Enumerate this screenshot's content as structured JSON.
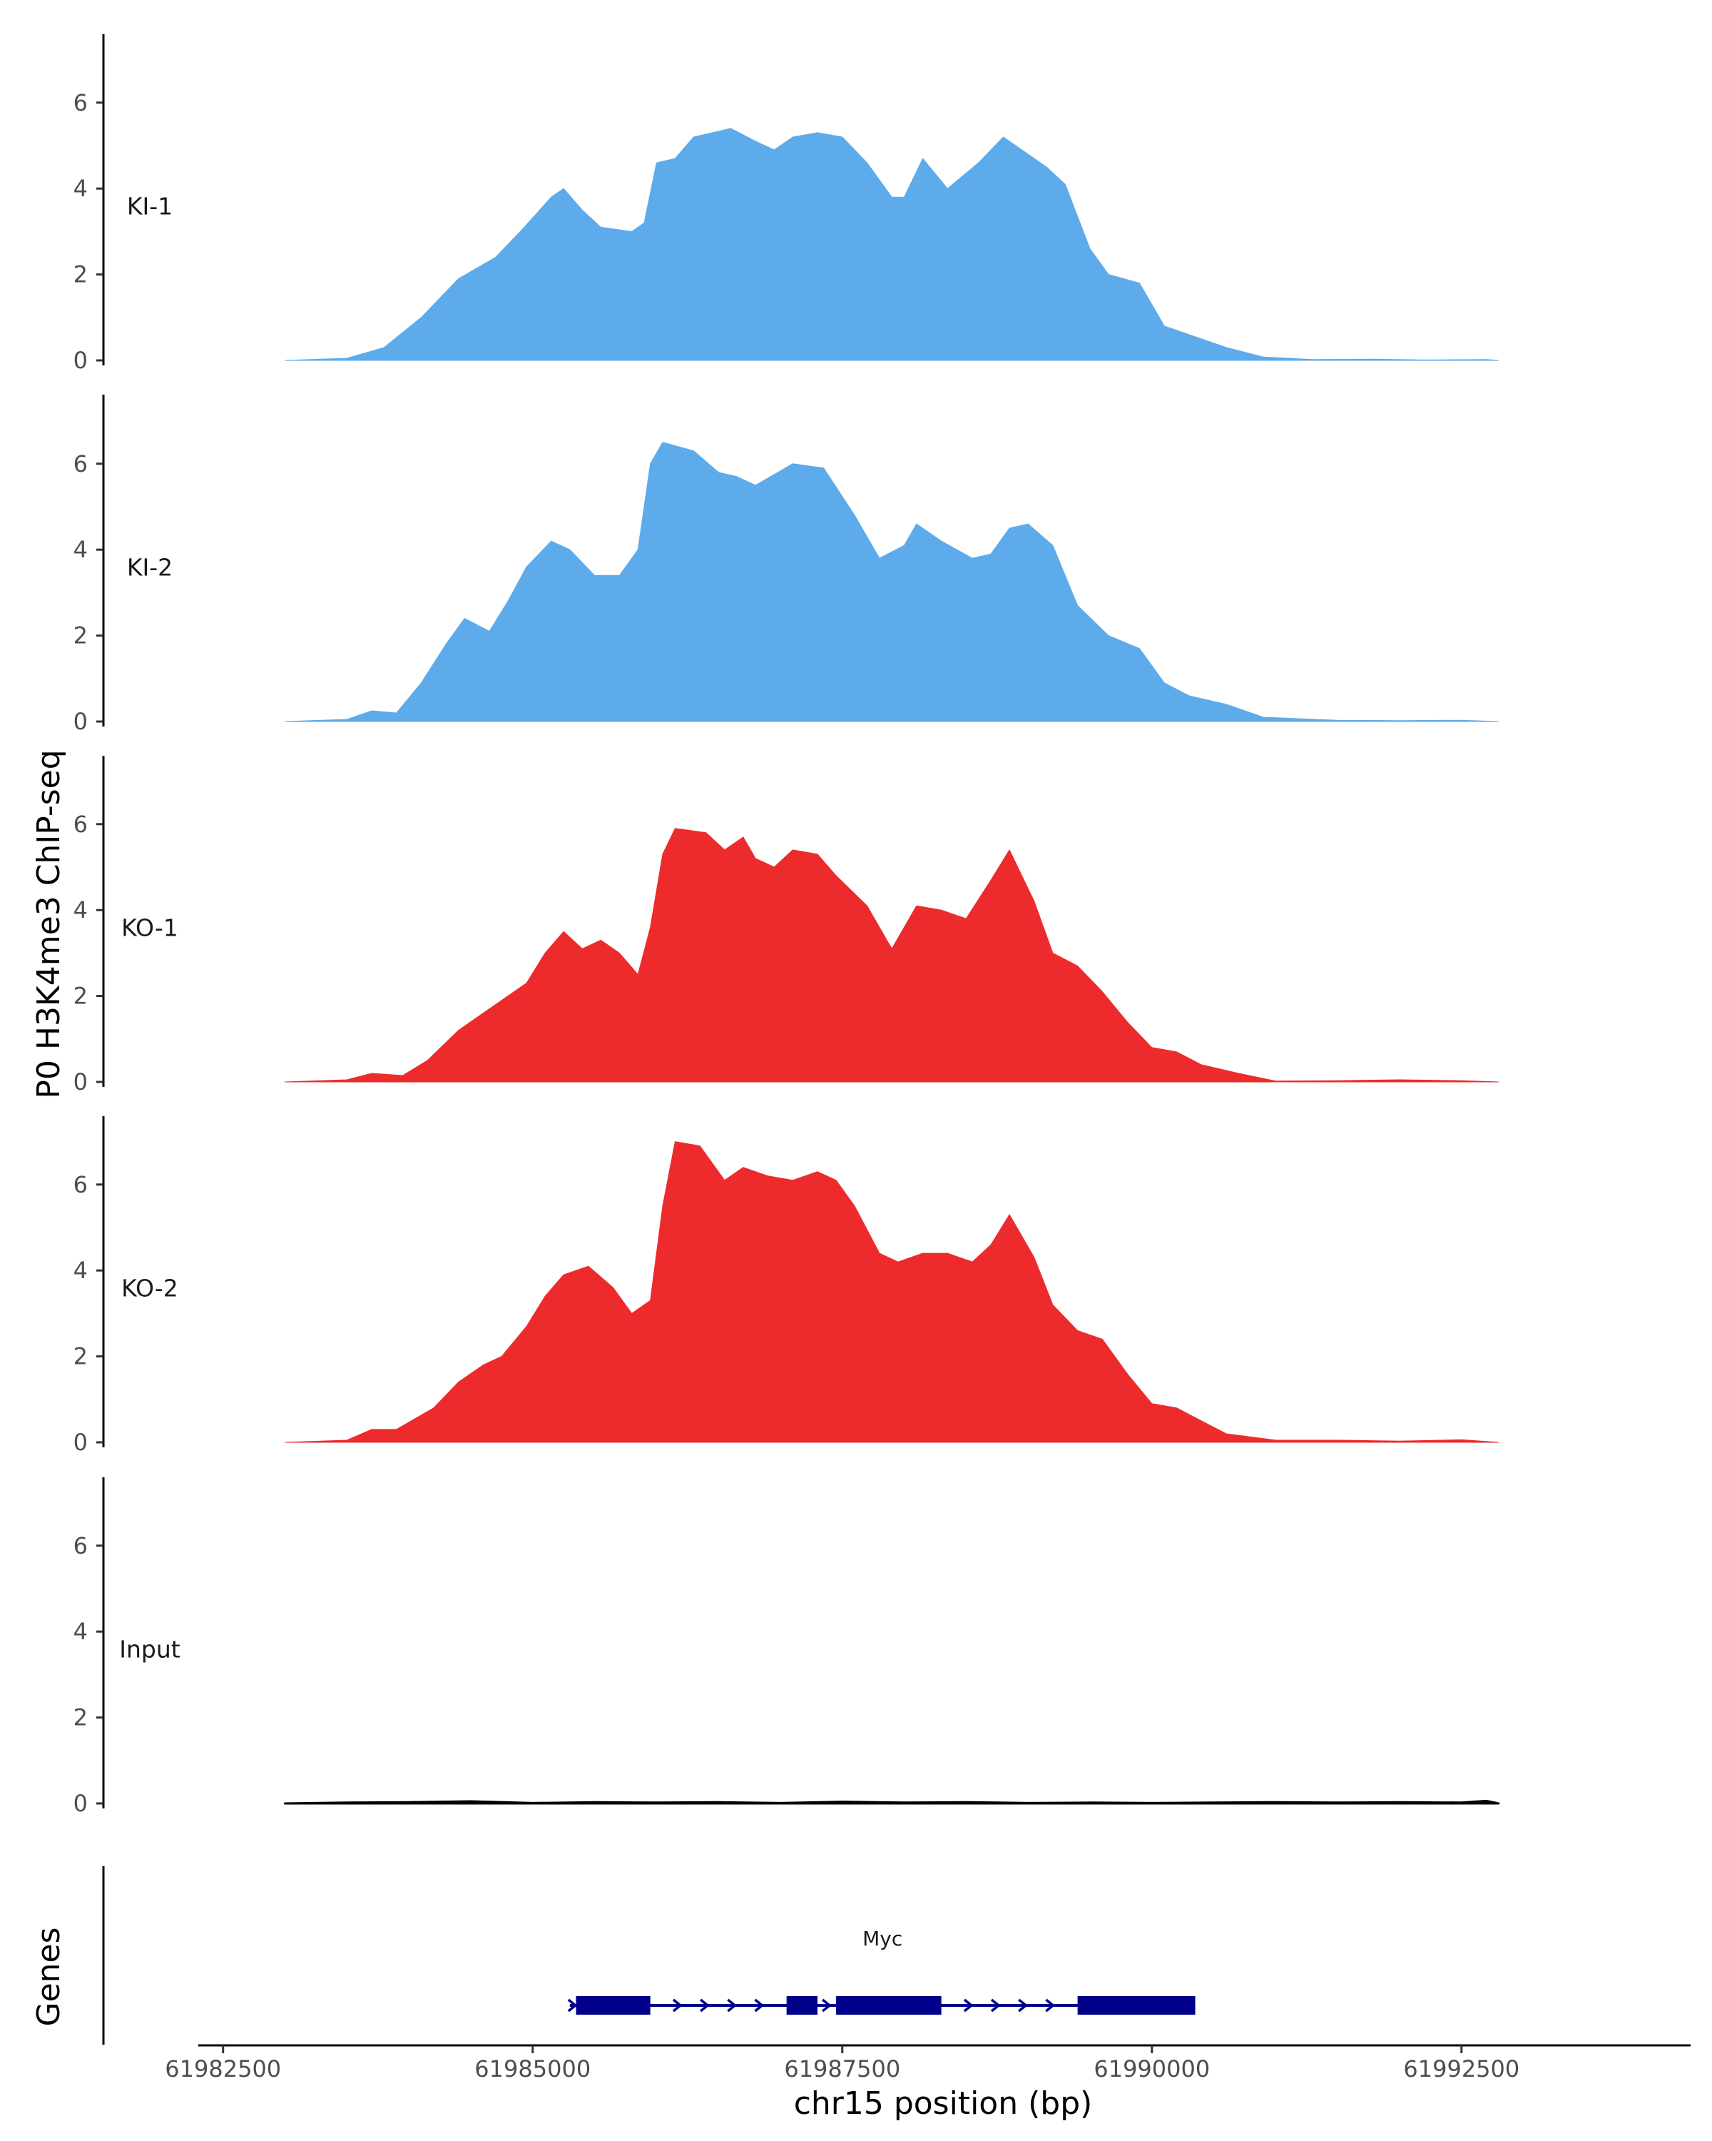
{
  "chart_data": {
    "type": "area",
    "ylabel": "P0 H3K4me3 ChIP-seq",
    "xlabel": "chr15 position (bp)",
    "xlim": [
      61982300,
      61994350
    ],
    "ylim": [
      0,
      7.5
    ],
    "x_ticks": [
      61982500,
      61985000,
      61987500,
      61990000,
      61992500
    ],
    "x_tick_labels": [
      "61982500",
      "61985000",
      "61987500",
      "61990000",
      "61992500"
    ],
    "y_ticks": [
      0,
      2,
      4,
      6
    ],
    "y_tick_labels": [
      "0",
      "2",
      "4",
      "6"
    ],
    "colors": {
      "KI": "#5DABEB",
      "KO": "#ED2B2C",
      "Input": "#000000",
      "gene": "#00008B"
    },
    "tracks": [
      {
        "name": "KI-1",
        "color": "#5DABEB",
        "points": [
          [
            61983000,
            0
          ],
          [
            61983500,
            0.05
          ],
          [
            61983800,
            0.3
          ],
          [
            61984100,
            1.0
          ],
          [
            61984400,
            1.9
          ],
          [
            61984700,
            2.4
          ],
          [
            61984900,
            3.0
          ],
          [
            61985150,
            3.8
          ],
          [
            61985250,
            4.0
          ],
          [
            61985400,
            3.5
          ],
          [
            61985550,
            3.1
          ],
          [
            61985800,
            3.0
          ],
          [
            61985900,
            3.2
          ],
          [
            61986000,
            4.6
          ],
          [
            61986150,
            4.7
          ],
          [
            61986300,
            5.2
          ],
          [
            61986600,
            5.4
          ],
          [
            61986800,
            5.1
          ],
          [
            61986950,
            4.9
          ],
          [
            61987100,
            5.2
          ],
          [
            61987300,
            5.3
          ],
          [
            61987500,
            5.2
          ],
          [
            61987700,
            4.6
          ],
          [
            61987900,
            3.8
          ],
          [
            61988000,
            3.8
          ],
          [
            61988150,
            4.7
          ],
          [
            61988350,
            4.0
          ],
          [
            61988600,
            4.6
          ],
          [
            61988800,
            5.2
          ],
          [
            61989000,
            4.8
          ],
          [
            61989150,
            4.5
          ],
          [
            61989300,
            4.1
          ],
          [
            61989500,
            2.6
          ],
          [
            61989650,
            2.0
          ],
          [
            61989900,
            1.8
          ],
          [
            61990100,
            0.8
          ],
          [
            61990300,
            0.6
          ],
          [
            61990600,
            0.3
          ],
          [
            61990900,
            0.08
          ],
          [
            61991300,
            0.02
          ],
          [
            61991800,
            0.03
          ],
          [
            61992200,
            0.01
          ],
          [
            61992700,
            0.02
          ],
          [
            61992800,
            0
          ]
        ]
      },
      {
        "name": "KI-2",
        "color": "#5DABEB",
        "points": [
          [
            61983000,
            0
          ],
          [
            61983500,
            0.05
          ],
          [
            61983700,
            0.25
          ],
          [
            61983900,
            0.2
          ],
          [
            61984100,
            0.9
          ],
          [
            61984300,
            1.8
          ],
          [
            61984450,
            2.4
          ],
          [
            61984650,
            2.1
          ],
          [
            61984800,
            2.8
          ],
          [
            61984950,
            3.6
          ],
          [
            61985150,
            4.2
          ],
          [
            61985300,
            4.0
          ],
          [
            61985500,
            3.4
          ],
          [
            61985700,
            3.4
          ],
          [
            61985850,
            4.0
          ],
          [
            61985950,
            6.0
          ],
          [
            61986050,
            6.5
          ],
          [
            61986300,
            6.3
          ],
          [
            61986500,
            5.8
          ],
          [
            61986650,
            5.7
          ],
          [
            61986800,
            5.5
          ],
          [
            61987100,
            6.0
          ],
          [
            61987350,
            5.9
          ],
          [
            61987600,
            4.8
          ],
          [
            61987800,
            3.8
          ],
          [
            61988000,
            4.1
          ],
          [
            61988100,
            4.6
          ],
          [
            61988300,
            4.2
          ],
          [
            61988550,
            3.8
          ],
          [
            61988700,
            3.9
          ],
          [
            61988850,
            4.5
          ],
          [
            61989000,
            4.6
          ],
          [
            61989200,
            4.1
          ],
          [
            61989400,
            2.7
          ],
          [
            61989650,
            2.0
          ],
          [
            61989900,
            1.7
          ],
          [
            61990100,
            0.9
          ],
          [
            61990300,
            0.6
          ],
          [
            61990600,
            0.4
          ],
          [
            61990900,
            0.1
          ],
          [
            61991500,
            0.03
          ],
          [
            61992000,
            0.02
          ],
          [
            61992500,
            0.03
          ],
          [
            61992800,
            0
          ]
        ]
      },
      {
        "name": "KO-1",
        "color": "#ED2B2C",
        "points": [
          [
            61983000,
            0
          ],
          [
            61983500,
            0.05
          ],
          [
            61983700,
            0.2
          ],
          [
            61983950,
            0.15
          ],
          [
            61984150,
            0.5
          ],
          [
            61984400,
            1.2
          ],
          [
            61984550,
            1.5
          ],
          [
            61984750,
            1.9
          ],
          [
            61984950,
            2.3
          ],
          [
            61985100,
            3.0
          ],
          [
            61985250,
            3.5
          ],
          [
            61985400,
            3.1
          ],
          [
            61985550,
            3.3
          ],
          [
            61985700,
            3.0
          ],
          [
            61985850,
            2.5
          ],
          [
            61985950,
            3.6
          ],
          [
            61986050,
            5.3
          ],
          [
            61986150,
            5.9
          ],
          [
            61986400,
            5.8
          ],
          [
            61986550,
            5.4
          ],
          [
            61986700,
            5.7
          ],
          [
            61986800,
            5.2
          ],
          [
            61986950,
            5.0
          ],
          [
            61987100,
            5.4
          ],
          [
            61987300,
            5.3
          ],
          [
            61987450,
            4.8
          ],
          [
            61987700,
            4.1
          ],
          [
            61987900,
            3.1
          ],
          [
            61988100,
            4.1
          ],
          [
            61988300,
            4.0
          ],
          [
            61988500,
            3.8
          ],
          [
            61988700,
            4.7
          ],
          [
            61988850,
            5.4
          ],
          [
            61989050,
            4.2
          ],
          [
            61989200,
            3.0
          ],
          [
            61989400,
            2.7
          ],
          [
            61989600,
            2.1
          ],
          [
            61989800,
            1.4
          ],
          [
            61990000,
            0.8
          ],
          [
            61990200,
            0.7
          ],
          [
            61990400,
            0.4
          ],
          [
            61990700,
            0.2
          ],
          [
            61991000,
            0.02
          ],
          [
            61991500,
            0.03
          ],
          [
            61992000,
            0.05
          ],
          [
            61992500,
            0.03
          ],
          [
            61992800,
            0
          ]
        ]
      },
      {
        "name": "KO-2",
        "color": "#ED2B2C",
        "points": [
          [
            61983000,
            0
          ],
          [
            61983500,
            0.05
          ],
          [
            61983700,
            0.3
          ],
          [
            61983900,
            0.3
          ],
          [
            61984200,
            0.8
          ],
          [
            61984400,
            1.4
          ],
          [
            61984600,
            1.8
          ],
          [
            61984750,
            2.0
          ],
          [
            61984950,
            2.7
          ],
          [
            61985100,
            3.4
          ],
          [
            61985250,
            3.9
          ],
          [
            61985450,
            4.1
          ],
          [
            61985650,
            3.6
          ],
          [
            61985800,
            3.0
          ],
          [
            61985950,
            3.3
          ],
          [
            61986050,
            5.5
          ],
          [
            61986150,
            7.0
          ],
          [
            61986350,
            6.9
          ],
          [
            61986550,
            6.1
          ],
          [
            61986700,
            6.4
          ],
          [
            61986900,
            6.2
          ],
          [
            61987100,
            6.1
          ],
          [
            61987300,
            6.3
          ],
          [
            61987450,
            6.1
          ],
          [
            61987600,
            5.5
          ],
          [
            61987800,
            4.4
          ],
          [
            61987950,
            4.2
          ],
          [
            61988150,
            4.4
          ],
          [
            61988350,
            4.4
          ],
          [
            61988550,
            4.2
          ],
          [
            61988700,
            4.6
          ],
          [
            61988850,
            5.3
          ],
          [
            61989050,
            4.3
          ],
          [
            61989200,
            3.2
          ],
          [
            61989400,
            2.6
          ],
          [
            61989600,
            2.4
          ],
          [
            61989800,
            1.6
          ],
          [
            61990000,
            0.9
          ],
          [
            61990200,
            0.8
          ],
          [
            61990400,
            0.5
          ],
          [
            61990600,
            0.2
          ],
          [
            61991000,
            0.05
          ],
          [
            61991500,
            0.05
          ],
          [
            61992000,
            0.03
          ],
          [
            61992500,
            0.06
          ],
          [
            61992800,
            0
          ]
        ]
      },
      {
        "name": "Input",
        "color": "#000000",
        "points": [
          [
            61983000,
            0
          ],
          [
            61983500,
            0.02
          ],
          [
            61984000,
            0.03
          ],
          [
            61984500,
            0.05
          ],
          [
            61985000,
            0.01
          ],
          [
            61985500,
            0.03
          ],
          [
            61986000,
            0.02
          ],
          [
            61986500,
            0.03
          ],
          [
            61987000,
            0.01
          ],
          [
            61987500,
            0.04
          ],
          [
            61988000,
            0.02
          ],
          [
            61988500,
            0.03
          ],
          [
            61989000,
            0.01
          ],
          [
            61989500,
            0.02
          ],
          [
            61990000,
            0.01
          ],
          [
            61990500,
            0.02
          ],
          [
            61991000,
            0.03
          ],
          [
            61991500,
            0.02
          ],
          [
            61992000,
            0.03
          ],
          [
            61992500,
            0.02
          ],
          [
            61992700,
            0.06
          ],
          [
            61992800,
            0
          ]
        ]
      }
    ],
    "genes_label": "Genes",
    "gene": {
      "name": "Myc",
      "start": 61985300,
      "end": 61990350,
      "exons": [
        [
          61985350,
          61985950
        ],
        [
          61987050,
          61987300
        ],
        [
          61987450,
          61988300
        ],
        [
          61989400,
          61990350
        ]
      ],
      "strand": "+"
    }
  }
}
